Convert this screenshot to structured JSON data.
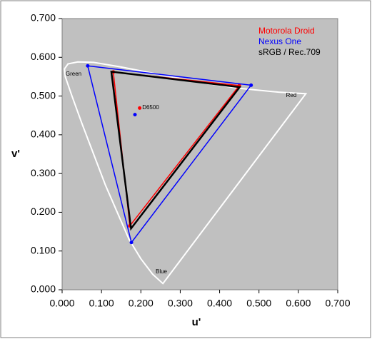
{
  "chart_data": {
    "type": "line",
    "x_label": "u'",
    "y_label": "v'",
    "xlim": [
      0,
      0.7
    ],
    "ylim": [
      0,
      0.7
    ],
    "xticks": [
      {
        "value": 0,
        "label": "0.000"
      },
      {
        "value": 0.1,
        "label": "0.100"
      },
      {
        "value": 0.2,
        "label": "0.200"
      },
      {
        "value": 0.3,
        "label": "0.300"
      },
      {
        "value": 0.4,
        "label": "0.400"
      },
      {
        "value": 0.5,
        "label": "0.500"
      },
      {
        "value": 0.6,
        "label": "0.600"
      },
      {
        "value": 0.7,
        "label": "0.700"
      }
    ],
    "yticks": [
      {
        "value": 0,
        "label": "0.000"
      },
      {
        "value": 0.1,
        "label": "0.100"
      },
      {
        "value": 0.2,
        "label": "0.200"
      },
      {
        "value": 0.3,
        "label": "0.300"
      },
      {
        "value": 0.4,
        "label": "0.400"
      },
      {
        "value": 0.5,
        "label": "0.500"
      },
      {
        "value": 0.6,
        "label": "0.600"
      },
      {
        "value": 0.7,
        "label": "0.700"
      }
    ],
    "plot_background": "#c0c0c0",
    "legend": "top-right",
    "series": [
      {
        "color": "#ffffff",
        "closed": true,
        "markers": false,
        "x": [
          0.256,
          0.23,
          0.2,
          0.17,
          0.14,
          0.11,
          0.08,
          0.05,
          0.025,
          0.008,
          0.006,
          0.015,
          0.04,
          0.08,
          0.15,
          0.25,
          0.35,
          0.45,
          0.55,
          0.619
        ],
        "values": [
          0.016,
          0.04,
          0.08,
          0.13,
          0.2,
          0.27,
          0.35,
          0.43,
          0.5,
          0.55,
          0.57,
          0.583,
          0.588,
          0.587,
          0.575,
          0.555,
          0.535,
          0.52,
          0.51,
          0.506
        ]
      },
      {
        "name": "Motorola Droid",
        "color": "#ff0000",
        "closed": true,
        "markers": true,
        "x": [
          0.45,
          0.13,
          0.172
        ],
        "values": [
          0.527,
          0.562,
          0.165
        ],
        "white_point": {
          "x": 0.197,
          "y": 0.469
        }
      },
      {
        "name": "Nexus One",
        "color": "#0000ff",
        "closed": true,
        "markers": true,
        "x": [
          0.48,
          0.065,
          0.176
        ],
        "values": [
          0.528,
          0.578,
          0.122
        ],
        "white_point": {
          "x": 0.185,
          "y": 0.452
        }
      },
      {
        "name": "sRGB / Rec.709",
        "color": "#000000",
        "closed": true,
        "markers": false,
        "x": [
          0.451,
          0.125,
          0.175
        ],
        "values": [
          0.523,
          0.563,
          0.158
        ]
      }
    ],
    "annotations": [
      "Green",
      "Red",
      "Blue",
      "D6500"
    ]
  }
}
